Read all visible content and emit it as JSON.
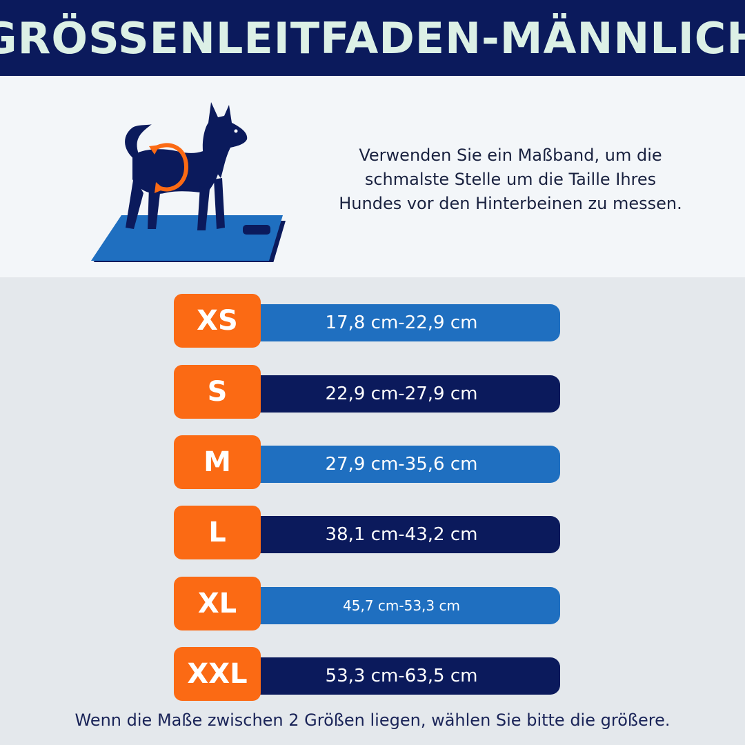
{
  "header": {
    "title": "GRÖSSENLEITFADEN-MÄNNLICH"
  },
  "intro": {
    "illustration_icon": "dog-measuring-waist-icon",
    "instruction_lines": [
      "Verwenden Sie ein Maßband, um die",
      "schmalste Stelle um die Taille Ihres",
      "Hundes vor den Hinterbeinen zu messen."
    ]
  },
  "sizes": [
    {
      "label": "XS",
      "range": "17,8 cm-22,9 cm"
    },
    {
      "label": "S",
      "range": "22,9 cm-27,9 cm"
    },
    {
      "label": "M",
      "range": "27,9 cm-35,6 cm"
    },
    {
      "label": "L",
      "range": "38,1 cm-43,2 cm"
    },
    {
      "label": "XL",
      "range": "45,7 cm-53,3 cm"
    },
    {
      "label": "XXL",
      "range": "53,3 cm-63,5 cm"
    }
  ],
  "footnote": "Wenn die Maße zwischen 2 Größen liegen, wählen Sie bitte die größere.",
  "colors": {
    "navy": "#0b1a5c",
    "blue": "#1f6fc0",
    "orange": "#fb6a14",
    "title_text": "#dcf0e6"
  }
}
